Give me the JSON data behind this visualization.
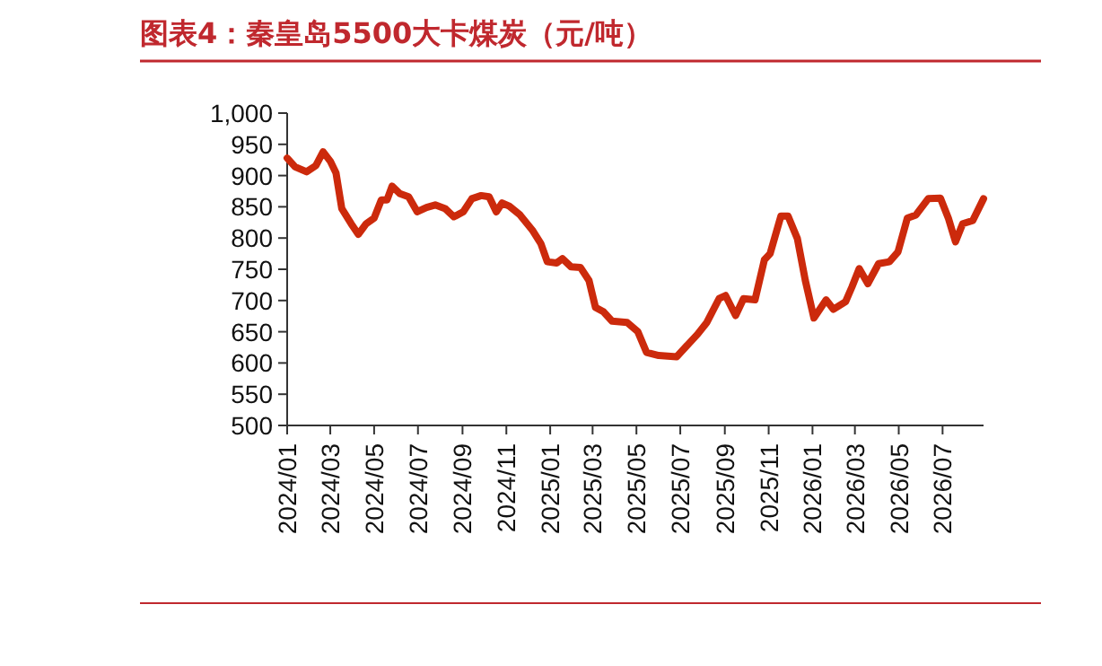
{
  "chart_data": {
    "type": "line",
    "title": "图表4：秦皇岛5500大卡煤炭（元/吨）",
    "x": [
      "2024-01-01",
      "2024-01-12",
      "2024-01-28",
      "2024-02-10",
      "2024-02-20",
      "2024-03-01",
      "2024-03-09",
      "2024-03-17",
      "2024-03-30",
      "2024-04-09",
      "2024-04-20",
      "2024-05-01",
      "2024-05-11",
      "2024-05-19",
      "2024-05-26",
      "2024-06-06",
      "2024-06-18",
      "2024-06-30",
      "2024-07-13",
      "2024-07-25",
      "2024-08-08",
      "2024-08-20",
      "2024-09-02",
      "2024-09-14",
      "2024-09-27",
      "2024-10-08",
      "2024-10-18",
      "2024-10-26",
      "2024-11-05",
      "2024-11-20",
      "2024-12-07",
      "2024-12-19",
      "2024-12-28",
      "2025-01-10",
      "2025-01-18",
      "2025-01-30",
      "2025-02-12",
      "2025-02-24",
      "2025-03-05",
      "2025-03-16",
      "2025-03-28",
      "2025-04-18",
      "2025-05-03",
      "2025-05-15",
      "2025-06-01",
      "2025-06-26",
      "2025-07-08",
      "2025-07-25",
      "2025-08-07",
      "2025-08-24",
      "2025-09-02",
      "2025-09-16",
      "2025-09-27",
      "2025-10-13",
      "2025-10-26",
      "2025-11-03",
      "2025-11-18",
      "2025-11-28",
      "2025-12-11",
      "2025-12-22",
      "2026-01-03",
      "2026-01-20",
      "2026-01-30",
      "2026-02-16",
      "2026-02-25",
      "2026-03-07",
      "2026-03-19",
      "2026-04-03",
      "2026-04-18",
      "2026-04-30",
      "2026-05-13",
      "2026-05-25",
      "2026-06-11",
      "2026-06-28",
      "2026-07-09",
      "2026-07-19",
      "2026-07-29",
      "2026-08-12",
      "2026-08-27"
    ],
    "series": [
      {
        "color": "#cc2a0c",
        "values": [
          928,
          914,
          906,
          916,
          938,
          923,
          904,
          847,
          823,
          806,
          823,
          832,
          861,
          861,
          883,
          871,
          866,
          842,
          849,
          853,
          847,
          834,
          842,
          863,
          868,
          866,
          842,
          856,
          851,
          837,
          813,
          791,
          762,
          760,
          767,
          754,
          753,
          732,
          689,
          682,
          667,
          665,
          650,
          617,
          612,
          610,
          625,
          646,
          665,
          703,
          708,
          676,
          703,
          701,
          765,
          775,
          835,
          835,
          799,
          732,
          672,
          701,
          686,
          698,
          722,
          751,
          727,
          759,
          762,
          778,
          832,
          837,
          863,
          864,
          832,
          794,
          823,
          828,
          863
        ]
      }
    ],
    "xlim": [
      "2024-01-01",
      "2026-08-27"
    ],
    "xticks": [
      {
        "value": "2024-01",
        "label": "2024/01"
      },
      {
        "value": "2024-03",
        "label": "2024/03"
      },
      {
        "value": "2024-05",
        "label": "2024/05"
      },
      {
        "value": "2024-07",
        "label": "2024/07"
      },
      {
        "value": "2024-09",
        "label": "2024/09"
      },
      {
        "value": "2024-11",
        "label": "2024/11"
      },
      {
        "value": "2025-01",
        "label": "2025/01"
      },
      {
        "value": "2025-03",
        "label": "2025/03"
      },
      {
        "value": "2025-05",
        "label": "2025/05"
      },
      {
        "value": "2025-07",
        "label": "2025/07"
      },
      {
        "value": "2025-09",
        "label": "2025/09"
      },
      {
        "value": "2025-11",
        "label": "2025/11"
      },
      {
        "value": "2026-01",
        "label": "2026/01"
      },
      {
        "value": "2026-03",
        "label": "2026/03"
      },
      {
        "value": "2026-05",
        "label": "2026/05"
      },
      {
        "value": "2026-07",
        "label": "2026/07"
      }
    ],
    "ylim": [
      500,
      1000
    ],
    "yticks": [
      500,
      550,
      600,
      650,
      700,
      750,
      800,
      850,
      900,
      950,
      {
        "value": 1000,
        "label": "1,000"
      }
    ],
    "grid": false,
    "marker": "none",
    "line_style": "solid"
  }
}
